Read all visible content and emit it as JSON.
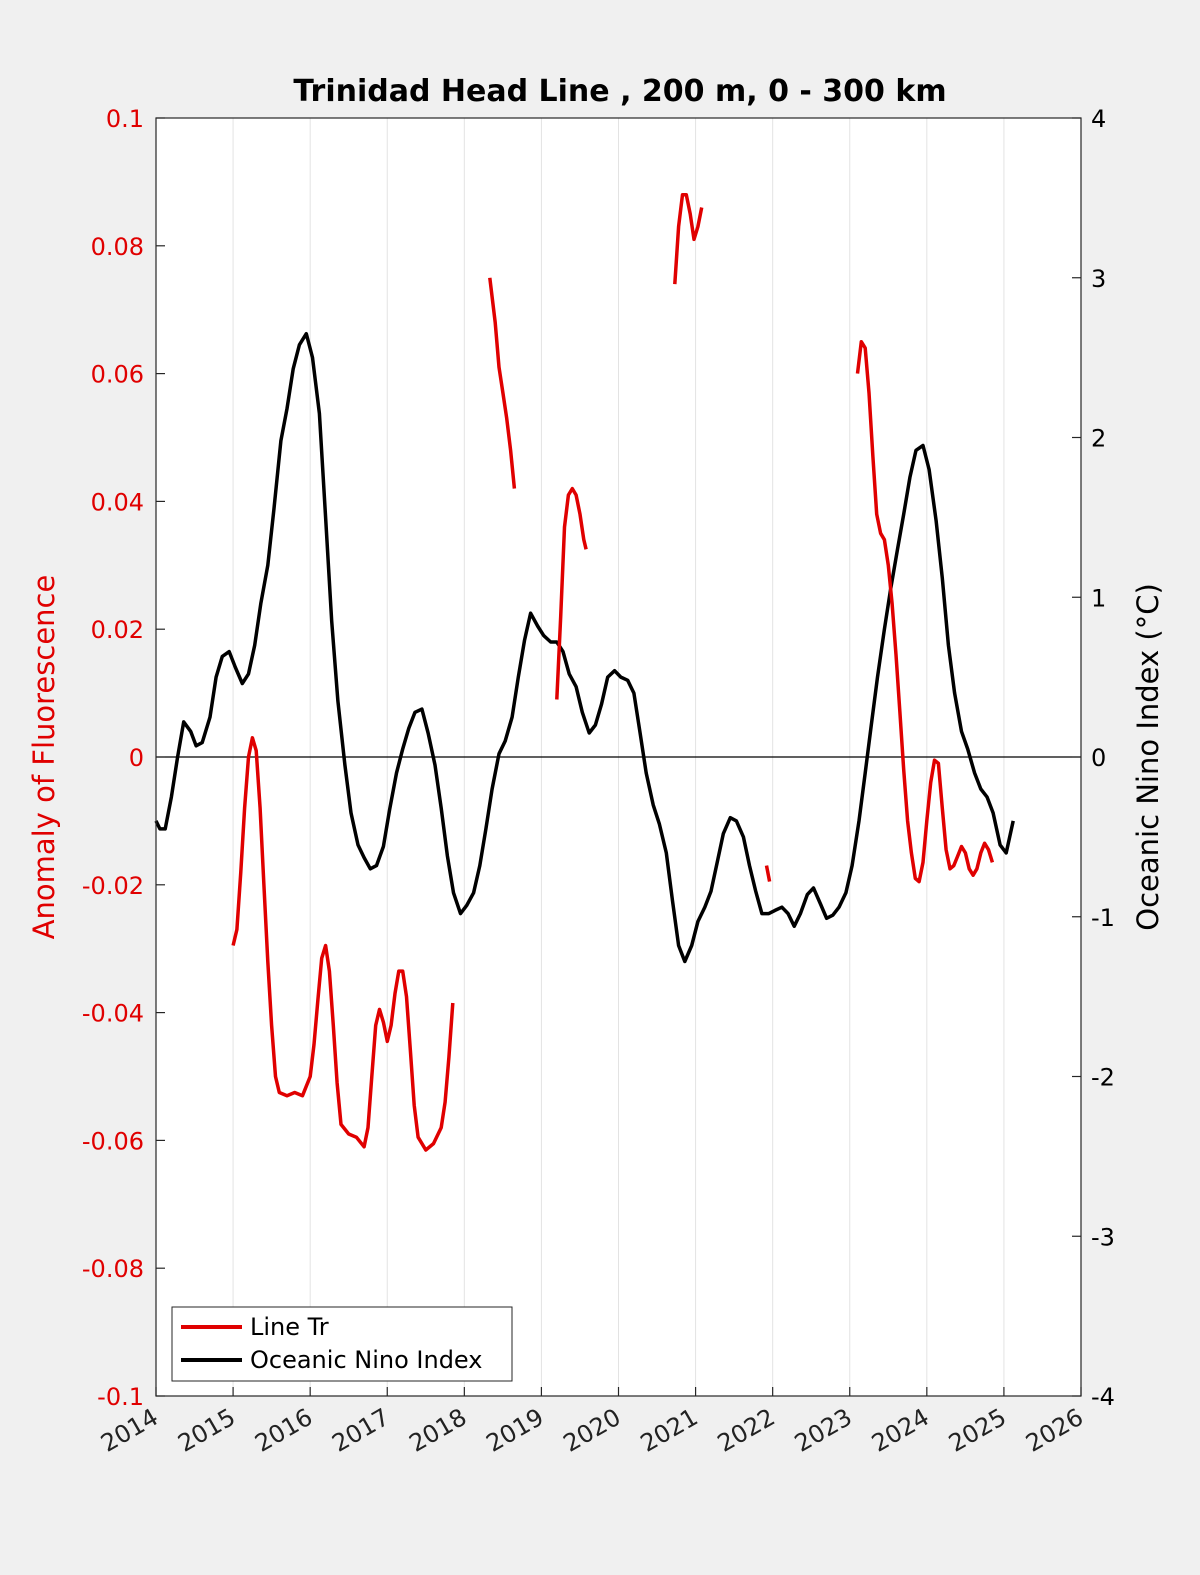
{
  "chart_data": {
    "type": "line",
    "title": "Trinidad Head Line , 200 m, 0 - 300 km",
    "xlabel": "",
    "ylabel_left": "Anomaly of Fluorescence",
    "ylabel_right": "Oceanic Nino Index (°C)",
    "xlim": [
      2014,
      2026
    ],
    "ylim_left": [
      -0.1,
      0.1
    ],
    "ylim_right": [
      -4,
      4
    ],
    "x_ticks": [
      "2014",
      "2015",
      "2016",
      "2017",
      "2018",
      "2019",
      "2020",
      "2021",
      "2022",
      "2023",
      "2024",
      "2025",
      "2026"
    ],
    "y_left_ticks": [
      "0.1",
      "0.08",
      "0.06",
      "0.04",
      "0.02",
      "0",
      "-0.02",
      "-0.04",
      "-0.06",
      "-0.08",
      "-0.1"
    ],
    "y_right_ticks": [
      "4",
      "3",
      "2",
      "1",
      "0",
      "-1",
      "-2",
      "-3",
      "-4"
    ],
    "grid": "vertical",
    "legend_position": "bottom-left",
    "colors": {
      "line_tr": "#e00000",
      "oni": "#000000"
    },
    "series": [
      {
        "name": "Line Tr",
        "axis": "left",
        "segments": [
          [
            [
              2015.0,
              -0.0295
            ],
            [
              2015.05,
              -0.027
            ],
            [
              2015.1,
              -0.018
            ],
            [
              2015.15,
              -0.008
            ],
            [
              2015.2,
              0.0
            ],
            [
              2015.25,
              0.003
            ],
            [
              2015.3,
              0.001
            ],
            [
              2015.35,
              -0.008
            ],
            [
              2015.4,
              -0.02
            ],
            [
              2015.45,
              -0.032
            ],
            [
              2015.5,
              -0.042
            ],
            [
              2015.55,
              -0.05
            ],
            [
              2015.6,
              -0.0525
            ],
            [
              2015.7,
              -0.053
            ],
            [
              2015.8,
              -0.0525
            ],
            [
              2015.9,
              -0.053
            ],
            [
              2016.0,
              -0.05
            ],
            [
              2016.05,
              -0.045
            ],
            [
              2016.1,
              -0.038
            ],
            [
              2016.15,
              -0.0315
            ],
            [
              2016.2,
              -0.0295
            ],
            [
              2016.25,
              -0.0335
            ],
            [
              2016.3,
              -0.042
            ],
            [
              2016.35,
              -0.051
            ],
            [
              2016.4,
              -0.0575
            ],
            [
              2016.5,
              -0.059
            ],
            [
              2016.6,
              -0.0595
            ],
            [
              2016.7,
              -0.061
            ],
            [
              2016.75,
              -0.058
            ],
            [
              2016.8,
              -0.05
            ],
            [
              2016.85,
              -0.042
            ],
            [
              2016.9,
              -0.0395
            ],
            [
              2016.95,
              -0.0415
            ],
            [
              2017.0,
              -0.0445
            ],
            [
              2017.05,
              -0.042
            ],
            [
              2017.1,
              -0.037
            ],
            [
              2017.15,
              -0.0335
            ],
            [
              2017.2,
              -0.0335
            ],
            [
              2017.25,
              -0.0375
            ],
            [
              2017.3,
              -0.046
            ],
            [
              2017.35,
              -0.0545
            ],
            [
              2017.4,
              -0.0595
            ],
            [
              2017.5,
              -0.0615
            ],
            [
              2017.6,
              -0.0605
            ],
            [
              2017.7,
              -0.058
            ],
            [
              2017.75,
              -0.054
            ],
            [
              2017.8,
              -0.047
            ],
            [
              2017.85,
              -0.0385
            ]
          ],
          [
            [
              2018.33,
              0.075
            ],
            [
              2018.4,
              0.068
            ],
            [
              2018.45,
              0.061
            ],
            [
              2018.5,
              0.057
            ],
            [
              2018.55,
              0.053
            ],
            [
              2018.6,
              0.048
            ],
            [
              2018.65,
              0.042
            ]
          ],
          [
            [
              2019.2,
              0.009
            ],
            [
              2019.25,
              0.022
            ],
            [
              2019.3,
              0.036
            ],
            [
              2019.35,
              0.041
            ],
            [
              2019.4,
              0.042
            ],
            [
              2019.45,
              0.041
            ],
            [
              2019.5,
              0.038
            ],
            [
              2019.55,
              0.034
            ],
            [
              2019.58,
              0.0325
            ]
          ],
          [
            [
              2020.73,
              0.074
            ],
            [
              2020.78,
              0.083
            ],
            [
              2020.83,
              0.088
            ],
            [
              2020.88,
              0.088
            ],
            [
              2020.93,
              0.085
            ],
            [
              2020.98,
              0.081
            ],
            [
              2021.03,
              0.083
            ],
            [
              2021.08,
              0.086
            ]
          ],
          [
            [
              2021.92,
              -0.017
            ],
            [
              2021.96,
              -0.0195
            ]
          ],
          [
            [
              2023.1,
              0.06
            ],
            [
              2023.15,
              0.065
            ],
            [
              2023.2,
              0.064
            ],
            [
              2023.25,
              0.057
            ],
            [
              2023.3,
              0.047
            ],
            [
              2023.35,
              0.038
            ],
            [
              2023.4,
              0.035
            ],
            [
              2023.45,
              0.034
            ],
            [
              2023.5,
              0.03
            ],
            [
              2023.55,
              0.024
            ],
            [
              2023.6,
              0.016
            ],
            [
              2023.65,
              0.007
            ],
            [
              2023.7,
              -0.002
            ],
            [
              2023.75,
              -0.01
            ],
            [
              2023.8,
              -0.015
            ],
            [
              2023.85,
              -0.019
            ],
            [
              2023.9,
              -0.0195
            ],
            [
              2023.95,
              -0.0165
            ],
            [
              2024.0,
              -0.01
            ],
            [
              2024.05,
              -0.004
            ],
            [
              2024.1,
              -0.0005
            ],
            [
              2024.15,
              -0.001
            ],
            [
              2024.2,
              -0.008
            ],
            [
              2024.25,
              -0.0145
            ],
            [
              2024.3,
              -0.0175
            ],
            [
              2024.35,
              -0.017
            ],
            [
              2024.4,
              -0.0155
            ],
            [
              2024.45,
              -0.014
            ],
            [
              2024.5,
              -0.015
            ],
            [
              2024.55,
              -0.0175
            ],
            [
              2024.6,
              -0.0185
            ],
            [
              2024.65,
              -0.0175
            ],
            [
              2024.7,
              -0.015
            ],
            [
              2024.75,
              -0.0135
            ],
            [
              2024.8,
              -0.0145
            ],
            [
              2024.85,
              -0.0165
            ]
          ]
        ]
      },
      {
        "name": "Oceanic Nino Index",
        "axis": "right",
        "segments": [
          [
            [
              2014.0,
              -0.4
            ],
            [
              2014.05,
              -0.45
            ],
            [
              2014.12,
              -0.45
            ],
            [
              2014.2,
              -0.25
            ],
            [
              2014.28,
              0.0
            ],
            [
              2014.36,
              0.22
            ],
            [
              2014.45,
              0.16
            ],
            [
              2014.52,
              0.07
            ],
            [
              2014.6,
              0.09
            ],
            [
              2014.7,
              0.25
            ],
            [
              2014.78,
              0.5
            ],
            [
              2014.86,
              0.63
            ],
            [
              2014.95,
              0.66
            ],
            [
              2015.03,
              0.56
            ],
            [
              2015.12,
              0.46
            ],
            [
              2015.2,
              0.52
            ],
            [
              2015.28,
              0.7
            ],
            [
              2015.36,
              0.96
            ],
            [
              2015.45,
              1.2
            ],
            [
              2015.53,
              1.55
            ],
            [
              2015.62,
              1.98
            ],
            [
              2015.7,
              2.18
            ],
            [
              2015.78,
              2.43
            ],
            [
              2015.86,
              2.58
            ],
            [
              2015.95,
              2.65
            ],
            [
              2016.03,
              2.5
            ],
            [
              2016.12,
              2.15
            ],
            [
              2016.2,
              1.5
            ],
            [
              2016.28,
              0.85
            ],
            [
              2016.36,
              0.35
            ],
            [
              2016.45,
              -0.05
            ],
            [
              2016.53,
              -0.35
            ],
            [
              2016.62,
              -0.55
            ],
            [
              2016.7,
              -0.63
            ],
            [
              2016.78,
              -0.7
            ],
            [
              2016.86,
              -0.68
            ],
            [
              2016.95,
              -0.56
            ],
            [
              2017.03,
              -0.33
            ],
            [
              2017.12,
              -0.1
            ],
            [
              2017.2,
              0.05
            ],
            [
              2017.28,
              0.18
            ],
            [
              2017.36,
              0.28
            ],
            [
              2017.45,
              0.3
            ],
            [
              2017.53,
              0.15
            ],
            [
              2017.62,
              -0.05
            ],
            [
              2017.7,
              -0.32
            ],
            [
              2017.78,
              -0.62
            ],
            [
              2017.86,
              -0.85
            ],
            [
              2017.95,
              -0.98
            ],
            [
              2018.03,
              -0.93
            ],
            [
              2018.12,
              -0.85
            ],
            [
              2018.2,
              -0.68
            ],
            [
              2018.28,
              -0.45
            ],
            [
              2018.36,
              -0.2
            ],
            [
              2018.45,
              0.02
            ],
            [
              2018.53,
              0.1
            ],
            [
              2018.62,
              0.25
            ],
            [
              2018.7,
              0.5
            ],
            [
              2018.78,
              0.73
            ],
            [
              2018.86,
              0.9
            ],
            [
              2018.95,
              0.82
            ],
            [
              2019.03,
              0.76
            ],
            [
              2019.12,
              0.72
            ],
            [
              2019.2,
              0.72
            ],
            [
              2019.28,
              0.66
            ],
            [
              2019.36,
              0.52
            ],
            [
              2019.45,
              0.44
            ],
            [
              2019.53,
              0.28
            ],
            [
              2019.62,
              0.15
            ],
            [
              2019.7,
              0.2
            ],
            [
              2019.78,
              0.33
            ],
            [
              2019.86,
              0.5
            ],
            [
              2019.95,
              0.54
            ],
            [
              2020.03,
              0.5
            ],
            [
              2020.12,
              0.48
            ],
            [
              2020.2,
              0.4
            ],
            [
              2020.28,
              0.15
            ],
            [
              2020.36,
              -0.1
            ],
            [
              2020.45,
              -0.3
            ],
            [
              2020.53,
              -0.42
            ],
            [
              2020.62,
              -0.6
            ],
            [
              2020.7,
              -0.9
            ],
            [
              2020.78,
              -1.18
            ],
            [
              2020.86,
              -1.28
            ],
            [
              2020.95,
              -1.18
            ],
            [
              2021.03,
              -1.03
            ],
            [
              2021.12,
              -0.94
            ],
            [
              2021.2,
              -0.84
            ],
            [
              2021.28,
              -0.66
            ],
            [
              2021.36,
              -0.48
            ],
            [
              2021.45,
              -0.38
            ],
            [
              2021.53,
              -0.4
            ],
            [
              2021.62,
              -0.5
            ],
            [
              2021.7,
              -0.68
            ],
            [
              2021.78,
              -0.84
            ],
            [
              2021.86,
              -0.98
            ],
            [
              2021.95,
              -0.98
            ],
            [
              2022.03,
              -0.96
            ],
            [
              2022.12,
              -0.94
            ],
            [
              2022.2,
              -0.98
            ],
            [
              2022.28,
              -1.06
            ],
            [
              2022.36,
              -0.98
            ],
            [
              2022.45,
              -0.86
            ],
            [
              2022.53,
              -0.82
            ],
            [
              2022.62,
              -0.92
            ],
            [
              2022.7,
              -1.01
            ],
            [
              2022.78,
              -0.99
            ],
            [
              2022.86,
              -0.94
            ],
            [
              2022.95,
              -0.85
            ],
            [
              2023.03,
              -0.68
            ],
            [
              2023.12,
              -0.4
            ],
            [
              2023.2,
              -0.1
            ],
            [
              2023.28,
              0.2
            ],
            [
              2023.36,
              0.5
            ],
            [
              2023.45,
              0.8
            ],
            [
              2023.53,
              1.05
            ],
            [
              2023.62,
              1.3
            ],
            [
              2023.7,
              1.52
            ],
            [
              2023.78,
              1.75
            ],
            [
              2023.86,
              1.92
            ],
            [
              2023.95,
              1.95
            ],
            [
              2024.03,
              1.8
            ],
            [
              2024.12,
              1.48
            ],
            [
              2024.2,
              1.12
            ],
            [
              2024.28,
              0.7
            ],
            [
              2024.36,
              0.4
            ],
            [
              2024.45,
              0.16
            ],
            [
              2024.53,
              0.05
            ],
            [
              2024.62,
              -0.1
            ],
            [
              2024.7,
              -0.2
            ],
            [
              2024.78,
              -0.25
            ],
            [
              2024.86,
              -0.35
            ],
            [
              2024.95,
              -0.55
            ],
            [
              2025.03,
              -0.6
            ],
            [
              2025.12,
              -0.4
            ]
          ]
        ]
      }
    ]
  },
  "legend": {
    "items": [
      {
        "label": "Line Tr"
      },
      {
        "label": "Oceanic Nino Index"
      }
    ]
  }
}
